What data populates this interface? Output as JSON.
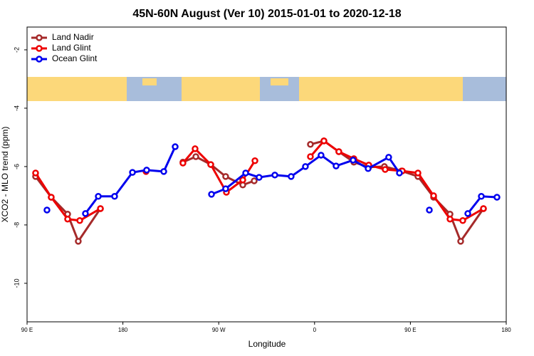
{
  "chart_data": {
    "type": "line",
    "title": "45N-60N August (Ver 10)   2015-01-01 to 2020-12-18",
    "x_label": "Longitude",
    "y_label": "XCO2 - MLO trend (ppm)",
    "xlim": [
      90,
      540
    ],
    "ylim": [
      -1.22,
      -11.32
    ],
    "xticks": [
      {
        "value": 90,
        "label": "90 E"
      },
      180,
      {
        "value": 270,
        "label": "90 W"
      },
      {
        "value": 360,
        "label": "0"
      },
      {
        "value": 450,
        "label": "90 E"
      },
      {
        "value": 540,
        "label": "180"
      }
    ],
    "yticks": [
      -2,
      -4,
      -6,
      -8,
      -10
    ],
    "legend": "top-left",
    "series": [
      {
        "name": "Land Nadir",
        "color": "#a52a2a",
        "x": [
          98.0,
          112.7,
          128.1,
          138.1,
          158.9,
          null,
          236.4,
          248.5,
          262.5,
          276.5,
          292.6,
          303.3,
          null,
          356.1,
          368.8,
          382.8,
          396.9,
          410.9,
          425.6,
          441.7,
          457.1,
          471.8,
          487.2,
          497.2,
          518.6
        ],
        "values": [
          -6.34,
          -7.05,
          -7.63,
          -8.56,
          -7.44,
          null,
          -5.85,
          -5.66,
          -5.93,
          -6.34,
          -6.63,
          -6.49,
          null,
          -5.24,
          -5.12,
          -5.49,
          -5.85,
          -6.02,
          -6.0,
          -6.15,
          -6.34,
          -7.05,
          -7.63,
          -8.56,
          -7.44
        ]
      },
      {
        "name": "Land Glint",
        "color": "#ee0000",
        "x": [
          98.0,
          112.7,
          128.1,
          139.5,
          158.9,
          null,
          201.7,
          null,
          236.4,
          247.8,
          262.5,
          277.2,
          292.6,
          304.0,
          null,
          356.1,
          368.8,
          382.8,
          396.9,
          410.9,
          426.3,
          442.4,
          457.1,
          471.8,
          487.2,
          499.2,
          518.6
        ],
        "values": [
          -6.22,
          -7.05,
          -7.8,
          -7.85,
          -7.44,
          null,
          -6.17,
          null,
          -5.88,
          -5.39,
          -5.93,
          -6.88,
          -6.46,
          -5.8,
          null,
          -5.66,
          -5.12,
          -5.49,
          -5.73,
          -5.95,
          -6.1,
          -6.15,
          -6.22,
          -7.0,
          -7.8,
          -7.85,
          -7.44
        ]
      },
      {
        "name": "Ocean Glint",
        "color": "#0000ee",
        "x": [
          108.7,
          null,
          144.8,
          156.9,
          172.2,
          189.0,
          202.3,
          218.4,
          229.1,
          null,
          263.2,
          276.5,
          295.3,
          307.9,
          322.7,
          338.0,
          351.4,
          366.1,
          380.2,
          396.2,
          410.3,
          429.6,
          439.7,
          null,
          467.8,
          null,
          503.9,
          516.6,
          531.3
        ],
        "values": [
          -7.49,
          null,
          -7.61,
          -7.02,
          -7.02,
          -6.2,
          -6.12,
          -6.17,
          -5.32,
          null,
          -6.95,
          -6.76,
          -6.22,
          -6.37,
          -6.29,
          -6.34,
          -6.0,
          -5.61,
          -5.98,
          -5.78,
          -6.07,
          -5.68,
          -6.22,
          null,
          -7.49,
          null,
          -7.61,
          -7.02,
          -7.05
        ]
      }
    ]
  }
}
